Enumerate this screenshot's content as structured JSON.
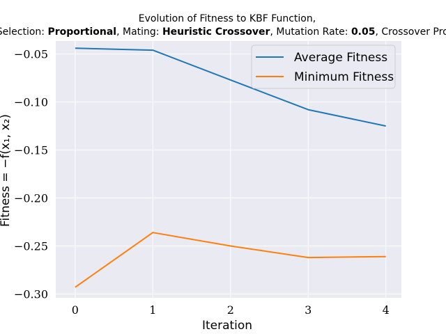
{
  "chart_data": {
    "type": "line",
    "title_line1": "Evolution of Fitness to KBF Function,",
    "title_line2": [
      {
        "text": "Selection: ",
        "bold": false
      },
      {
        "text": "Proportional",
        "bold": true
      },
      {
        "text": ", Mating: ",
        "bold": false
      },
      {
        "text": "Heuristic Crossover",
        "bold": true
      },
      {
        "text": ", Mutation Rate: ",
        "bold": false
      },
      {
        "text": "0.05",
        "bold": true
      },
      {
        "text": ", Crossover Prob: ",
        "bold": false
      }
    ],
    "xlabel": "Iteration",
    "ylabel": "Fitness = −f(x₁, x₂)",
    "x": [
      0,
      1,
      2,
      3,
      4
    ],
    "xlim": [
      -0.25,
      4.2
    ],
    "ylim": [
      -0.304,
      -0.0365
    ],
    "xticks": [
      0,
      1,
      2,
      3,
      4
    ],
    "yticks": [
      -0.05,
      -0.1,
      -0.15,
      -0.2,
      -0.25,
      -0.3
    ],
    "ytick_labels": [
      "−0.05",
      "−0.10",
      "−0.15",
      "−0.20",
      "−0.25",
      "−0.30"
    ],
    "xtick_labels": [
      "0",
      "1",
      "2",
      "3",
      "4"
    ],
    "grid": true,
    "legend_position": "top-right",
    "background": "#eaeaf2",
    "series": [
      {
        "name": "Average Fitness",
        "color": "#1f77b4",
        "values": [
          -0.044,
          -0.046,
          -0.077,
          -0.108,
          -0.125
        ]
      },
      {
        "name": "Minimum Fitness",
        "color": "#ff7f0e",
        "values": [
          -0.293,
          -0.236,
          -0.25,
          -0.262,
          -0.261
        ]
      }
    ]
  }
}
